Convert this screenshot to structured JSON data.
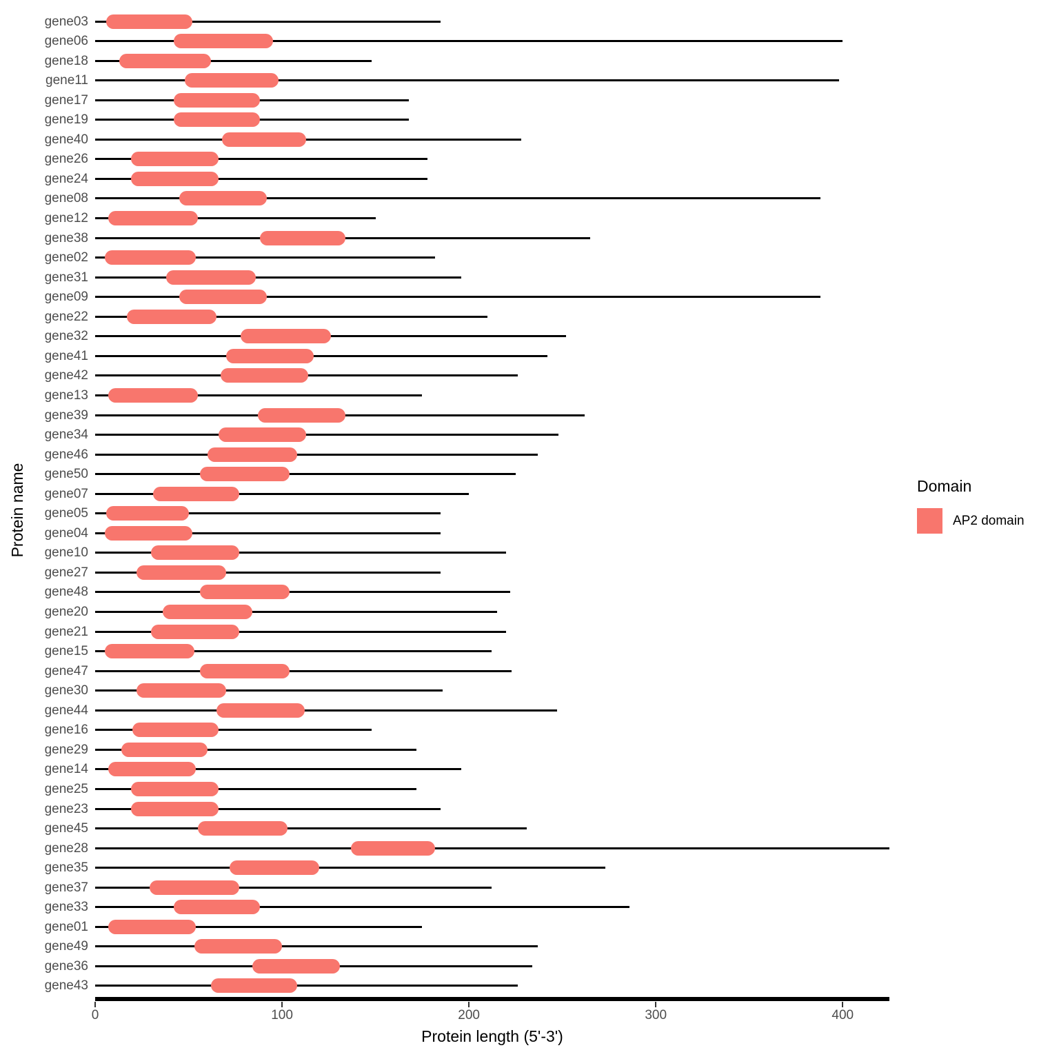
{
  "colors": {
    "domain_fill": "#F8766D",
    "protein_line": "#000000",
    "axis_text": "#4d4d4d",
    "title_text": "#000000",
    "background": "#ffffff"
  },
  "legend": {
    "title": "Domain",
    "items": [
      {
        "label": "AP2 domain",
        "color": "#F8766D"
      }
    ]
  },
  "chart_data": {
    "type": "bar",
    "variant": "horizontal-gene-domain-segments",
    "title": "",
    "xlabel": "Protein length (5'-3')",
    "ylabel": "Protein name",
    "xlim": [
      0,
      425
    ],
    "x_ticks": [
      0,
      100,
      200,
      300,
      400
    ],
    "grid": false,
    "legend_position": "right",
    "series": [
      {
        "name": "AP2 domain",
        "color": "#F8766D"
      }
    ],
    "genes": [
      {
        "name": "gene03",
        "length": 185,
        "domain_start": 6,
        "domain_end": 52
      },
      {
        "name": "gene06",
        "length": 400,
        "domain_start": 42,
        "domain_end": 95
      },
      {
        "name": "gene18",
        "length": 148,
        "domain_start": 13,
        "domain_end": 62
      },
      {
        "name": "gene11",
        "length": 398,
        "domain_start": 48,
        "domain_end": 98
      },
      {
        "name": "gene17",
        "length": 168,
        "domain_start": 42,
        "domain_end": 88
      },
      {
        "name": "gene19",
        "length": 168,
        "domain_start": 42,
        "domain_end": 88
      },
      {
        "name": "gene40",
        "length": 228,
        "domain_start": 68,
        "domain_end": 113
      },
      {
        "name": "gene26",
        "length": 178,
        "domain_start": 19,
        "domain_end": 66
      },
      {
        "name": "gene24",
        "length": 178,
        "domain_start": 19,
        "domain_end": 66
      },
      {
        "name": "gene08",
        "length": 388,
        "domain_start": 45,
        "domain_end": 92
      },
      {
        "name": "gene12",
        "length": 150,
        "domain_start": 7,
        "domain_end": 55
      },
      {
        "name": "gene38",
        "length": 265,
        "domain_start": 88,
        "domain_end": 134
      },
      {
        "name": "gene02",
        "length": 182,
        "domain_start": 5,
        "domain_end": 54
      },
      {
        "name": "gene31",
        "length": 196,
        "domain_start": 38,
        "domain_end": 86
      },
      {
        "name": "gene09",
        "length": 388,
        "domain_start": 45,
        "domain_end": 92
      },
      {
        "name": "gene22",
        "length": 210,
        "domain_start": 17,
        "domain_end": 65
      },
      {
        "name": "gene32",
        "length": 252,
        "domain_start": 78,
        "domain_end": 126
      },
      {
        "name": "gene41",
        "length": 242,
        "domain_start": 70,
        "domain_end": 117
      },
      {
        "name": "gene42",
        "length": 226,
        "domain_start": 67,
        "domain_end": 114
      },
      {
        "name": "gene13",
        "length": 175,
        "domain_start": 7,
        "domain_end": 55
      },
      {
        "name": "gene39",
        "length": 262,
        "domain_start": 87,
        "domain_end": 134
      },
      {
        "name": "gene34",
        "length": 248,
        "domain_start": 66,
        "domain_end": 113
      },
      {
        "name": "gene46",
        "length": 237,
        "domain_start": 60,
        "domain_end": 108
      },
      {
        "name": "gene50",
        "length": 225,
        "domain_start": 56,
        "domain_end": 104
      },
      {
        "name": "gene07",
        "length": 200,
        "domain_start": 31,
        "domain_end": 77
      },
      {
        "name": "gene05",
        "length": 185,
        "domain_start": 6,
        "domain_end": 50
      },
      {
        "name": "gene04",
        "length": 185,
        "domain_start": 5,
        "domain_end": 52
      },
      {
        "name": "gene10",
        "length": 220,
        "domain_start": 30,
        "domain_end": 77
      },
      {
        "name": "gene27",
        "length": 185,
        "domain_start": 22,
        "domain_end": 70
      },
      {
        "name": "gene48",
        "length": 222,
        "domain_start": 56,
        "domain_end": 104
      },
      {
        "name": "gene20",
        "length": 215,
        "domain_start": 36,
        "domain_end": 84
      },
      {
        "name": "gene21",
        "length": 220,
        "domain_start": 30,
        "domain_end": 77
      },
      {
        "name": "gene15",
        "length": 212,
        "domain_start": 5,
        "domain_end": 53
      },
      {
        "name": "gene47",
        "length": 223,
        "domain_start": 56,
        "domain_end": 104
      },
      {
        "name": "gene30",
        "length": 186,
        "domain_start": 22,
        "domain_end": 70
      },
      {
        "name": "gene44",
        "length": 247,
        "domain_start": 65,
        "domain_end": 112
      },
      {
        "name": "gene16",
        "length": 148,
        "domain_start": 20,
        "domain_end": 66
      },
      {
        "name": "gene29",
        "length": 172,
        "domain_start": 14,
        "domain_end": 60
      },
      {
        "name": "gene14",
        "length": 196,
        "domain_start": 7,
        "domain_end": 54
      },
      {
        "name": "gene25",
        "length": 172,
        "domain_start": 19,
        "domain_end": 66
      },
      {
        "name": "gene23",
        "length": 185,
        "domain_start": 19,
        "domain_end": 66
      },
      {
        "name": "gene45",
        "length": 231,
        "domain_start": 55,
        "domain_end": 103
      },
      {
        "name": "gene28",
        "length": 425,
        "domain_start": 137,
        "domain_end": 182
      },
      {
        "name": "gene35",
        "length": 273,
        "domain_start": 72,
        "domain_end": 120
      },
      {
        "name": "gene37",
        "length": 212,
        "domain_start": 29,
        "domain_end": 77
      },
      {
        "name": "gene33",
        "length": 286,
        "domain_start": 42,
        "domain_end": 88
      },
      {
        "name": "gene01",
        "length": 175,
        "domain_start": 7,
        "domain_end": 54
      },
      {
        "name": "gene49",
        "length": 237,
        "domain_start": 53,
        "domain_end": 100
      },
      {
        "name": "gene36",
        "length": 234,
        "domain_start": 84,
        "domain_end": 131
      },
      {
        "name": "gene43",
        "length": 226,
        "domain_start": 62,
        "domain_end": 108
      }
    ]
  }
}
